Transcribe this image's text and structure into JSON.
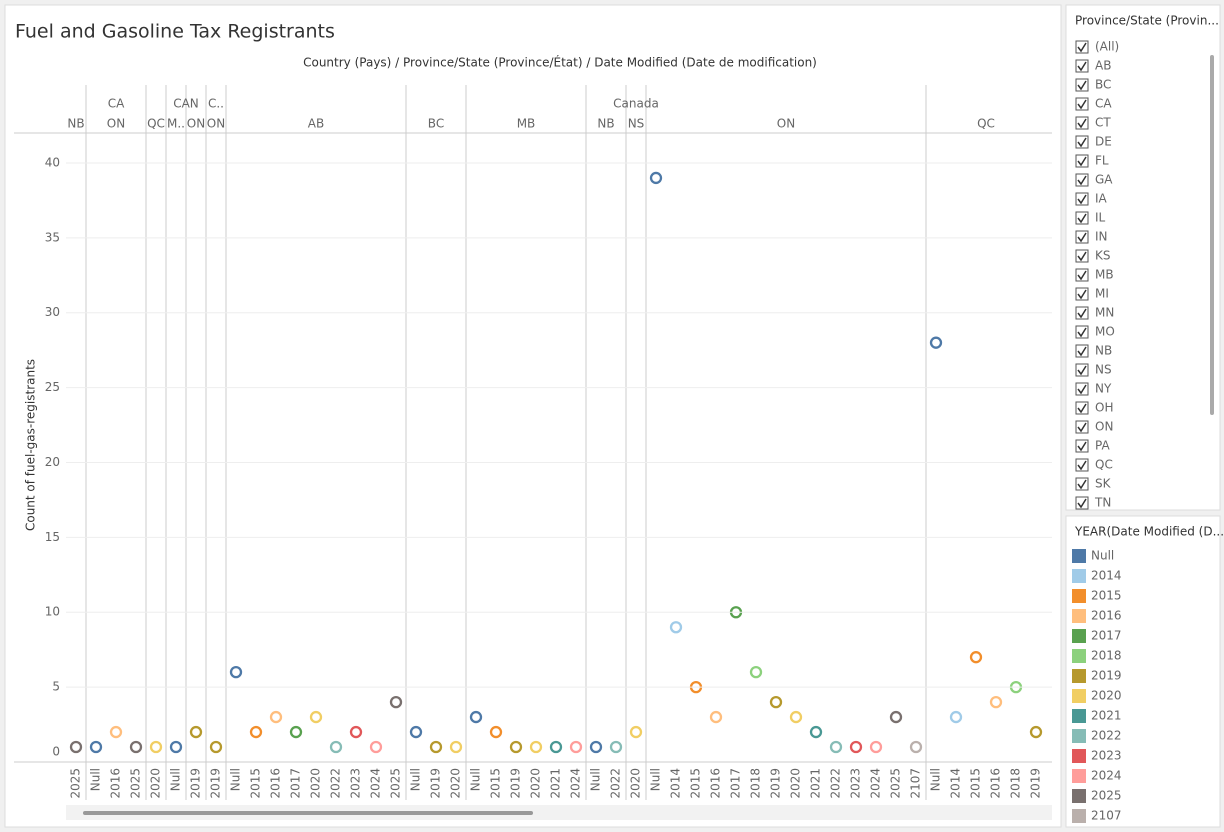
{
  "title": "Fuel and Gasoline Tax Registrants",
  "chart_data": {
    "type": "dot",
    "header": "Country (Pays)  /  Province/State (Province/État)  /  Date Modified (Date de modification)",
    "y_label": "Count of fuel-gas-registrants",
    "ylim": [
      0,
      42
    ],
    "yticks": [
      0,
      5,
      10,
      15,
      20,
      25,
      30,
      35,
      40
    ],
    "grid": true,
    "columns": [
      {
        "country": null,
        "province": "NB",
        "year": "2025",
        "value": 1
      },
      {
        "country": "CA",
        "province": "ON",
        "year": "Null",
        "value": 1
      },
      {
        "country": "CA",
        "province": "ON",
        "year": "2016",
        "value": 2
      },
      {
        "country": "CA",
        "province": "ON",
        "year": "2025",
        "value": 1
      },
      {
        "country": null,
        "province": "QC",
        "year": "2020",
        "value": 1
      },
      {
        "country": "CAN",
        "province": "M..",
        "year": "Null",
        "value": 1
      },
      {
        "country": "CAN",
        "province": "ON",
        "year": "2019",
        "value": 2
      },
      {
        "country": "C..",
        "province": "ON",
        "year": "2019",
        "value": 1
      },
      {
        "country": "Canada",
        "province": "AB",
        "year": "Null",
        "value": 6
      },
      {
        "country": "Canada",
        "province": "AB",
        "year": "2015",
        "value": 2
      },
      {
        "country": "Canada",
        "province": "AB",
        "year": "2016",
        "value": 3
      },
      {
        "country": "Canada",
        "province": "AB",
        "year": "2017",
        "value": 2
      },
      {
        "country": "Canada",
        "province": "AB",
        "year": "2020",
        "value": 3
      },
      {
        "country": "Canada",
        "province": "AB",
        "year": "2022",
        "value": 1
      },
      {
        "country": "Canada",
        "province": "AB",
        "year": "2023",
        "value": 2
      },
      {
        "country": "Canada",
        "province": "AB",
        "year": "2024",
        "value": 1
      },
      {
        "country": "Canada",
        "province": "AB",
        "year": "2025",
        "value": 4
      },
      {
        "country": "Canada",
        "province": "BC",
        "year": "Null",
        "value": 2
      },
      {
        "country": "Canada",
        "province": "BC",
        "year": "2019",
        "value": 1
      },
      {
        "country": "Canada",
        "province": "BC",
        "year": "2020",
        "value": 1
      },
      {
        "country": "Canada",
        "province": "MB",
        "year": "Null",
        "value": 3
      },
      {
        "country": "Canada",
        "province": "MB",
        "year": "2015",
        "value": 2
      },
      {
        "country": "Canada",
        "province": "MB",
        "year": "2019",
        "value": 1
      },
      {
        "country": "Canada",
        "province": "MB",
        "year": "2020",
        "value": 1
      },
      {
        "country": "Canada",
        "province": "MB",
        "year": "2021",
        "value": 1
      },
      {
        "country": "Canada",
        "province": "MB",
        "year": "2024",
        "value": 1
      },
      {
        "country": "Canada",
        "province": "NB",
        "year": "Null",
        "value": 1
      },
      {
        "country": "Canada",
        "province": "NB",
        "year": "2022",
        "value": 1
      },
      {
        "country": "Canada",
        "province": "NS",
        "year": "2020",
        "value": 2
      },
      {
        "country": "Canada",
        "province": "ON",
        "year": "Null",
        "value": 39
      },
      {
        "country": "Canada",
        "province": "ON",
        "year": "2014",
        "value": 9
      },
      {
        "country": "Canada",
        "province": "ON",
        "year": "2015",
        "value": 5
      },
      {
        "country": "Canada",
        "province": "ON",
        "year": "2016",
        "value": 3
      },
      {
        "country": "Canada",
        "province": "ON",
        "year": "2017",
        "value": 10
      },
      {
        "country": "Canada",
        "province": "ON",
        "year": "2018",
        "value": 6
      },
      {
        "country": "Canada",
        "province": "ON",
        "year": "2019",
        "value": 4
      },
      {
        "country": "Canada",
        "province": "ON",
        "year": "2020",
        "value": 3
      },
      {
        "country": "Canada",
        "province": "ON",
        "year": "2021",
        "value": 2
      },
      {
        "country": "Canada",
        "province": "ON",
        "year": "2022",
        "value": 1
      },
      {
        "country": "Canada",
        "province": "ON",
        "year": "2023",
        "value": 1
      },
      {
        "country": "Canada",
        "province": "ON",
        "year": "2024",
        "value": 1
      },
      {
        "country": "Canada",
        "province": "ON",
        "year": "2025",
        "value": 3
      },
      {
        "country": "Canada",
        "province": "ON",
        "year": "2107",
        "value": 1
      },
      {
        "country": "Canada",
        "province": "QC",
        "year": "Null",
        "value": 28
      },
      {
        "country": "Canada",
        "province": "QC",
        "year": "2014",
        "value": 3
      },
      {
        "country": "Canada",
        "province": "QC",
        "year": "2015",
        "value": 7
      },
      {
        "country": "Canada",
        "province": "QC",
        "year": "2016",
        "value": 4
      },
      {
        "country": "Canada",
        "province": "QC",
        "year": "2018",
        "value": 5
      },
      {
        "country": "Canada",
        "province": "QC",
        "year": "2019",
        "value": 2
      }
    ]
  },
  "province_filter": {
    "title": "Province/State (Provin...",
    "items": [
      "(All)",
      "AB",
      "BC",
      "CA",
      "CT",
      "DE",
      "FL",
      "GA",
      "IA",
      "IL",
      "IN",
      "KS",
      "MB",
      "MI",
      "MN",
      "MO",
      "NB",
      "NS",
      "NY",
      "OH",
      "ON",
      "PA",
      "QC",
      "SK",
      "TN"
    ]
  },
  "year_legend": {
    "title": "YEAR(Date Modified (D...",
    "items": [
      {
        "name": "Null",
        "color": "#4e79a7"
      },
      {
        "name": "2014",
        "color": "#a0cbe8"
      },
      {
        "name": "2015",
        "color": "#f28e2b"
      },
      {
        "name": "2016",
        "color": "#ffbe7d"
      },
      {
        "name": "2017",
        "color": "#59a14f"
      },
      {
        "name": "2018",
        "color": "#8cd17d"
      },
      {
        "name": "2019",
        "color": "#b6992d"
      },
      {
        "name": "2020",
        "color": "#f1ce63"
      },
      {
        "name": "2021",
        "color": "#499894"
      },
      {
        "name": "2022",
        "color": "#86bcb6"
      },
      {
        "name": "2023",
        "color": "#e15759"
      },
      {
        "name": "2024",
        "color": "#ff9d9a"
      },
      {
        "name": "2025",
        "color": "#79706e"
      },
      {
        "name": "2107",
        "color": "#bab0ac"
      }
    ]
  }
}
